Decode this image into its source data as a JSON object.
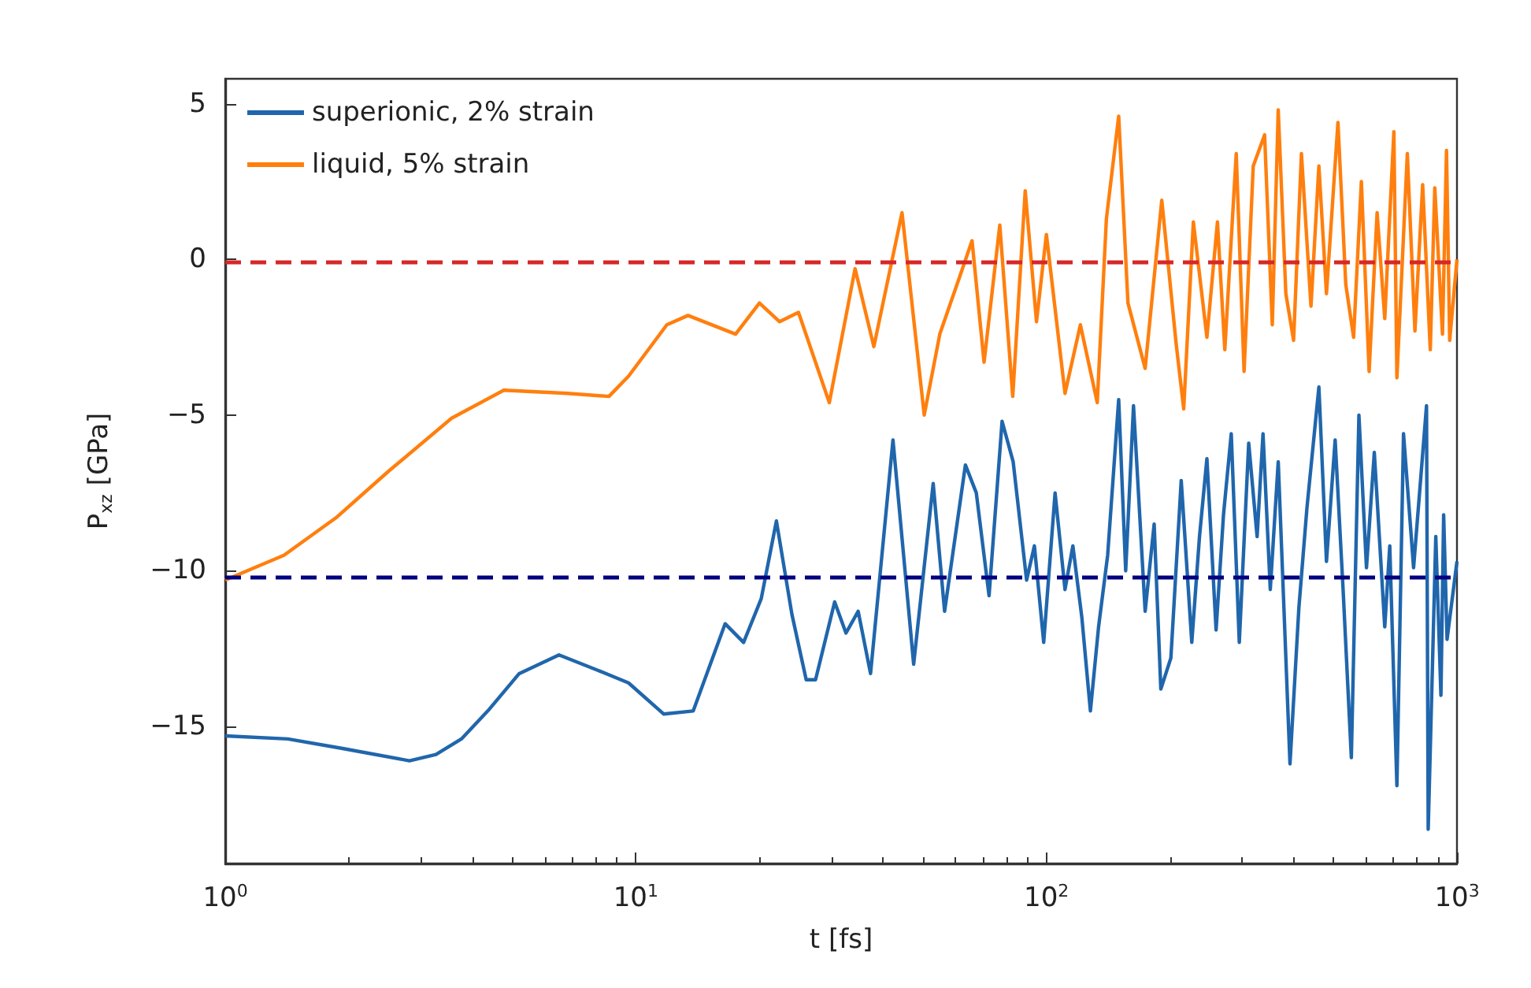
{
  "chart_data": {
    "type": "line",
    "xlabel": "t [fs]",
    "ylabel": "P$_{xz}$ [GPa]",
    "log": "x",
    "legend": "top left",
    "xlim": [
      1,
      1000
    ],
    "xticks": [
      {
        "value": 1,
        "label": "10$^{0}$"
      },
      {
        "value": 10,
        "label": "10$^{1}$"
      },
      {
        "value": 100,
        "label": "10$^{2}$"
      },
      {
        "value": 1000,
        "label": "10$^{3}$"
      }
    ],
    "ylim": [
      -19.4,
      5.8
    ],
    "yticks": [
      5,
      0,
      {
        "value": -5,
        "label": "−5"
      },
      {
        "value": -10,
        "label": "−10"
      },
      {
        "value": -15,
        "label": "−15"
      }
    ],
    "ref_lines": [
      {
        "axis": "y",
        "value": -0.1,
        "color": "#d62728",
        "line_style": "dashed"
      },
      {
        "axis": "y",
        "value": -10.2,
        "color": "#000080",
        "line_style": "dashed"
      }
    ],
    "series": [
      {
        "name": "superionic, 2% strain",
        "color": "#2066ac",
        "x": [
          1,
          1.42,
          1.92,
          2.81,
          3.26,
          3.76,
          4.36,
          5.2,
          6.5,
          8.1,
          9.6,
          11.7,
          13.8,
          16.5,
          18.3,
          20.2,
          22,
          24,
          26,
          27.4,
          30.5,
          32.5,
          34.8,
          37.3,
          42.3,
          47.5,
          53,
          56.5,
          63.5,
          67.5,
          72.5,
          78,
          83,
          89.5,
          93.5,
          98.5,
          105,
          111,
          116,
          122,
          128,
          134,
          141,
          150,
          156,
          163,
          174,
          183,
          190,
          201,
          213,
          226,
          236,
          246,
          259,
          270,
          282,
          295,
          311,
          326,
          337,
          351,
          367,
          392,
          412,
          431,
          461,
          481,
          505,
          528,
          553,
          577,
          602,
          629,
          667,
          686,
          714,
          741,
          784,
          843,
          851,
          888,
          914,
          928,
          946,
          1000
        ],
        "values": [
          -15.3,
          -15.4,
          -15.7,
          -16.1,
          -15.9,
          -15.4,
          -14.5,
          -13.3,
          -12.7,
          -13.2,
          -13.6,
          -14.6,
          -14.5,
          -11.7,
          -12.3,
          -10.9,
          -8.4,
          -11.4,
          -13.5,
          -13.5,
          -11.0,
          -12.0,
          -11.3,
          -13.3,
          -5.8,
          -13.0,
          -7.2,
          -11.3,
          -6.6,
          -7.5,
          -10.8,
          -5.2,
          -6.5,
          -10.3,
          -9.2,
          -12.3,
          -7.5,
          -10.6,
          -9.2,
          -11.5,
          -14.5,
          -11.8,
          -9.5,
          -4.5,
          -10.0,
          -4.7,
          -11.3,
          -8.5,
          -13.8,
          -12.8,
          -7.1,
          -12.3,
          -8.9,
          -6.4,
          -11.9,
          -8.2,
          -5.6,
          -12.3,
          -5.9,
          -8.9,
          -5.6,
          -10.6,
          -6.5,
          -16.2,
          -11.2,
          -8.0,
          -4.1,
          -9.7,
          -5.8,
          -10.6,
          -16.0,
          -5.0,
          -9.9,
          -6.2,
          -11.8,
          -9.2,
          -16.9,
          -5.6,
          -9.9,
          -4.7,
          -18.3,
          -8.9,
          -14.0,
          -8.2,
          -12.2,
          -9.7
        ]
      },
      {
        "name": "liquid, 5% strain",
        "color": "#ff7f0e",
        "x": [
          1,
          1.39,
          1.86,
          2.5,
          3.56,
          4.77,
          6.8,
          8.6,
          9.6,
          11.9,
          13.4,
          17.5,
          20,
          22.4,
          24.9,
          29.6,
          34.2,
          38,
          44.5,
          50.4,
          55,
          61.7,
          65.9,
          70.5,
          77,
          82.8,
          88.8,
          94.6,
          100,
          111,
          121,
          133,
          140,
          150,
          158,
          174,
          191,
          207,
          216,
          228,
          246,
          261,
          272,
          290,
          303,
          319,
          340,
          355,
          367,
          383,
          400,
          418,
          441,
          461,
          481,
          513,
          536,
          560,
          585,
          611,
          639,
          667,
          702,
          714,
          757,
          790,
          825,
          861,
          883,
          922,
          943,
          960,
          1000
        ],
        "values": [
          -10.3,
          -9.5,
          -8.3,
          -6.8,
          -5.1,
          -4.2,
          -4.3,
          -4.4,
          -3.75,
          -2.1,
          -1.8,
          -2.4,
          -1.4,
          -2.0,
          -1.7,
          -4.6,
          -0.3,
          -2.8,
          1.5,
          -5.0,
          -2.4,
          -0.5,
          0.6,
          -3.3,
          1.1,
          -4.4,
          2.2,
          -2.0,
          0.8,
          -4.3,
          -2.1,
          -4.6,
          1.3,
          4.6,
          -1.4,
          -3.5,
          1.9,
          -2.7,
          -4.8,
          1.2,
          -2.5,
          1.2,
          -2.9,
          3.4,
          -3.6,
          3.0,
          4.0,
          -2.1,
          4.8,
          -1.1,
          -2.6,
          3.4,
          -1.5,
          3.0,
          -1.1,
          4.4,
          -0.8,
          -2.5,
          2.5,
          -3.6,
          1.5,
          -1.9,
          4.1,
          -3.8,
          3.4,
          -2.3,
          2.4,
          -2.9,
          2.3,
          -2.4,
          3.5,
          -2.6,
          0.0
        ]
      }
    ]
  }
}
